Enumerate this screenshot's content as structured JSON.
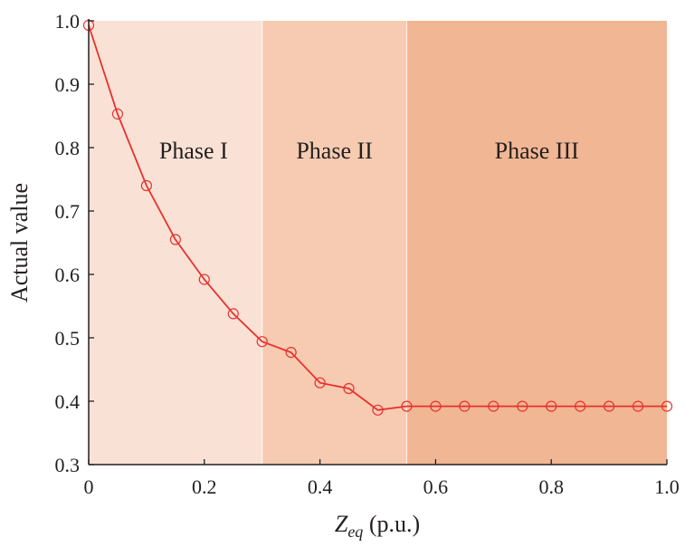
{
  "chart_data": {
    "type": "line",
    "title": "",
    "xlabel": {
      "main": "Z",
      "sub": "eq",
      "unit": " (p.u.)"
    },
    "ylabel": "Actual value",
    "xlim": [
      0,
      1.0
    ],
    "ylim": [
      0.3,
      1.0
    ],
    "xticks": [
      "0",
      "0.2",
      "0.4",
      "0.6",
      "0.8",
      "1.0"
    ],
    "xtick_values": [
      0,
      0.2,
      0.4,
      0.6,
      0.8,
      1.0
    ],
    "yticks": [
      "0.3",
      "0.4",
      "0.5",
      "0.6",
      "0.7",
      "0.8",
      "0.9",
      "1.0"
    ],
    "ytick_values": [
      0.3,
      0.4,
      0.5,
      0.6,
      0.7,
      0.8,
      0.9,
      1.0
    ],
    "grid": false,
    "series": [
      {
        "name": "Actual value",
        "color": "#e8312f",
        "marker": "open-circle",
        "x": [
          0,
          0.05,
          0.1,
          0.15,
          0.2,
          0.25,
          0.3,
          0.35,
          0.4,
          0.45,
          0.5,
          0.55,
          0.6,
          0.65,
          0.7,
          0.75,
          0.8,
          0.85,
          0.9,
          0.95,
          1.0
        ],
        "y": [
          0.993,
          0.853,
          0.74,
          0.655,
          0.592,
          0.538,
          0.494,
          0.477,
          0.429,
          0.42,
          0.386,
          0.392,
          0.392,
          0.392,
          0.392,
          0.392,
          0.392,
          0.392,
          0.392,
          0.392,
          0.392
        ]
      }
    ],
    "regions": [
      {
        "label": "Phase I",
        "x": [
          0,
          0.3
        ],
        "color": "#f9e2d5"
      },
      {
        "label": "Phase II",
        "x": [
          0.3,
          0.55
        ],
        "color": "#f6cbb1"
      },
      {
        "label": "Phase III",
        "x": [
          0.55,
          1.0
        ],
        "color": "#f1b693"
      }
    ]
  }
}
